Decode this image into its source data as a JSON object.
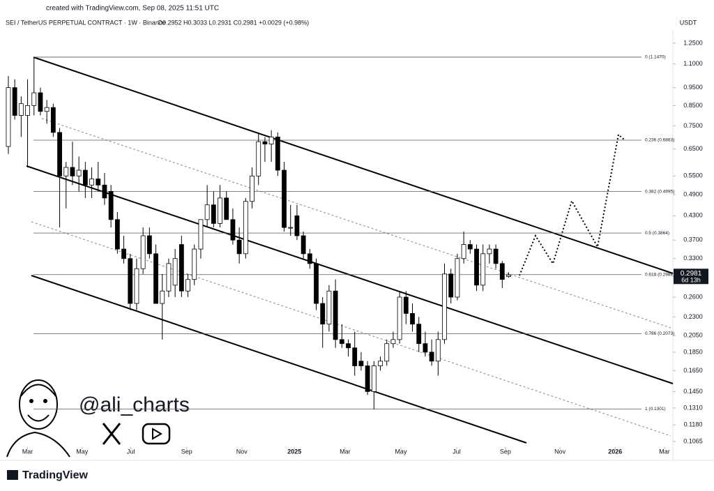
{
  "header": {
    "created": "created with TradingView.com, Sep 08, 2025 11:51 UTC",
    "symbol": "SEI / TetherUS PERPETUAL CONTRACT · 1W · Binance",
    "ohlc": "O0.2952 H0.3033 L0.2931 C0.2981 +0.0029 (+0.98%)",
    "currency": "USDT"
  },
  "chart_data": {
    "type": "candlestick",
    "log_scale": true,
    "up_color": "#ffffff",
    "down_color": "#000000",
    "border_color": "#000000",
    "open": [
      0.66,
      0.95,
      0.8,
      0.8,
      0.85,
      0.92,
      0.82,
      0.84,
      0.72,
      0.55,
      0.58,
      0.55,
      0.57,
      0.52,
      0.54,
      0.52,
      0.5,
      0.42,
      0.35,
      0.33,
      0.25,
      0.31,
      0.38,
      0.34,
      0.25,
      0.27,
      0.28,
      0.36,
      0.27,
      0.29,
      0.35,
      0.42,
      0.46,
      0.41,
      0.48,
      0.42,
      0.37,
      0.34,
      0.47,
      0.55,
      0.68,
      0.67,
      0.7,
      0.57,
      0.4,
      0.43,
      0.38,
      0.34,
      0.32,
      0.25,
      0.22,
      0.27,
      0.2,
      0.195,
      0.19,
      0.175,
      0.17,
      0.145,
      0.17,
      0.175,
      0.195,
      0.2,
      0.26,
      0.235,
      0.22,
      0.195,
      0.185,
      0.175,
      0.2,
      0.3,
      0.26,
      0.33,
      0.36,
      0.35,
      0.28,
      0.34,
      0.35,
      0.32,
      0.2952
    ],
    "high": [
      1.02,
      1.0,
      0.9,
      1.0,
      1.147,
      0.95,
      0.88,
      0.86,
      0.74,
      0.6,
      0.68,
      0.62,
      0.6,
      0.58,
      0.6,
      0.56,
      0.52,
      0.44,
      0.38,
      0.34,
      0.33,
      0.4,
      0.4,
      0.36,
      0.3,
      0.33,
      0.35,
      0.38,
      0.3,
      0.36,
      0.42,
      0.52,
      0.5,
      0.52,
      0.5,
      0.45,
      0.4,
      0.48,
      0.58,
      0.72,
      0.7,
      0.73,
      0.72,
      0.6,
      0.46,
      0.46,
      0.39,
      0.35,
      0.33,
      0.26,
      0.28,
      0.29,
      0.22,
      0.2,
      0.21,
      0.185,
      0.175,
      0.175,
      0.18,
      0.2,
      0.21,
      0.27,
      0.27,
      0.25,
      0.23,
      0.21,
      0.2,
      0.21,
      0.32,
      0.31,
      0.34,
      0.39,
      0.37,
      0.36,
      0.36,
      0.36,
      0.36,
      0.325,
      0.3033
    ],
    "low": [
      0.63,
      0.78,
      0.7,
      0.58,
      0.8,
      0.8,
      0.76,
      0.7,
      0.4,
      0.45,
      0.52,
      0.5,
      0.48,
      0.48,
      0.5,
      0.46,
      0.4,
      0.34,
      0.32,
      0.24,
      0.24,
      0.3,
      0.33,
      0.25,
      0.2,
      0.26,
      0.26,
      0.26,
      0.26,
      0.28,
      0.33,
      0.4,
      0.4,
      0.4,
      0.42,
      0.36,
      0.32,
      0.33,
      0.45,
      0.52,
      0.6,
      0.6,
      0.55,
      0.39,
      0.38,
      0.37,
      0.33,
      0.31,
      0.24,
      0.19,
      0.21,
      0.19,
      0.19,
      0.18,
      0.16,
      0.165,
      0.142,
      0.13,
      0.165,
      0.17,
      0.19,
      0.195,
      0.22,
      0.21,
      0.185,
      0.18,
      0.17,
      0.16,
      0.195,
      0.25,
      0.255,
      0.32,
      0.34,
      0.27,
      0.27,
      0.32,
      0.31,
      0.275,
      0.2931
    ],
    "close": [
      0.95,
      0.8,
      0.86,
      0.85,
      0.92,
      0.82,
      0.84,
      0.72,
      0.55,
      0.58,
      0.55,
      0.57,
      0.52,
      0.54,
      0.52,
      0.48,
      0.42,
      0.35,
      0.33,
      0.25,
      0.31,
      0.38,
      0.34,
      0.25,
      0.27,
      0.32,
      0.33,
      0.27,
      0.29,
      0.35,
      0.42,
      0.46,
      0.41,
      0.48,
      0.42,
      0.37,
      0.34,
      0.47,
      0.55,
      0.68,
      0.67,
      0.7,
      0.57,
      0.4,
      0.4,
      0.38,
      0.34,
      0.32,
      0.25,
      0.22,
      0.27,
      0.2,
      0.195,
      0.19,
      0.17,
      0.17,
      0.145,
      0.17,
      0.175,
      0.195,
      0.2,
      0.26,
      0.235,
      0.22,
      0.195,
      0.185,
      0.175,
      0.2,
      0.3,
      0.26,
      0.33,
      0.36,
      0.35,
      0.28,
      0.34,
      0.35,
      0.32,
      0.29,
      0.2981
    ],
    "xlim": [
      -1.3,
      103.6
    ],
    "xticks": [
      {
        "value": 3,
        "label": "Mar"
      },
      {
        "value": 11.5,
        "label": "May"
      },
      {
        "value": 19.1,
        "label": "Jul"
      },
      {
        "value": 27.8,
        "label": "Sep"
      },
      {
        "value": 36.4,
        "label": "Nov"
      },
      {
        "value": 44.6,
        "label": "2025"
      },
      {
        "value": 52.5,
        "label": "Mar"
      },
      {
        "value": 61.2,
        "label": "May"
      },
      {
        "value": 69.9,
        "label": "Jul"
      },
      {
        "value": 77.5,
        "label": "Sep"
      },
      {
        "value": 86,
        "label": "Nov"
      },
      {
        "value": 94.6,
        "label": "2026"
      },
      {
        "value": 102.3,
        "label": "Mar"
      }
    ],
    "ylim": [
      0.1033,
      1.3625
    ],
    "yticks": [
      {
        "value": 1.25,
        "label": "1.2500"
      },
      {
        "value": 1.1,
        "label": "1.1000"
      },
      {
        "value": 0.95,
        "label": "0.9500"
      },
      {
        "value": 0.85,
        "label": "0.8500"
      },
      {
        "value": 0.75,
        "label": "0.7500"
      },
      {
        "value": 0.65,
        "label": "0.6500"
      },
      {
        "value": 0.55,
        "label": "0.5500"
      },
      {
        "value": 0.49,
        "label": "0.4900"
      },
      {
        "value": 0.43,
        "label": "0.4300"
      },
      {
        "value": 0.37,
        "label": "0.3700"
      },
      {
        "value": 0.33,
        "label": "0.3300"
      },
      {
        "value": 0.26,
        "label": "0.2600"
      },
      {
        "value": 0.23,
        "label": "0.2300"
      },
      {
        "value": 0.205,
        "label": "0.2050"
      },
      {
        "value": 0.185,
        "label": "0.1850"
      },
      {
        "value": 0.165,
        "label": "0.1650"
      },
      {
        "value": 0.145,
        "label": "0.1450"
      },
      {
        "value": 0.131,
        "label": "0.1310"
      },
      {
        "value": 0.118,
        "label": "0.1180"
      },
      0.1065
    ],
    "fib_levels": [
      {
        "value": 1.147,
        "label": "0 (1.1470)"
      },
      {
        "value": 0.6863,
        "label": "0.236 (0.6863)"
      },
      {
        "value": 0.4995,
        "label": "0.382 (0.4995)"
      },
      {
        "value": 0.3864,
        "label": "0.5 (0.3864)"
      },
      {
        "value": 0.2988,
        "label": "0.618 (0.2988)"
      },
      {
        "value": 0.2073,
        "label": "0.786 (0.2073)"
      },
      {
        "value": 0.1301,
        "label": "1 (0.1301)"
      }
    ],
    "last_price": 0.2981,
    "countdown": "6d 13h"
  },
  "watermark": {
    "handle": "@ali_charts",
    "brand": "TradingView"
  }
}
